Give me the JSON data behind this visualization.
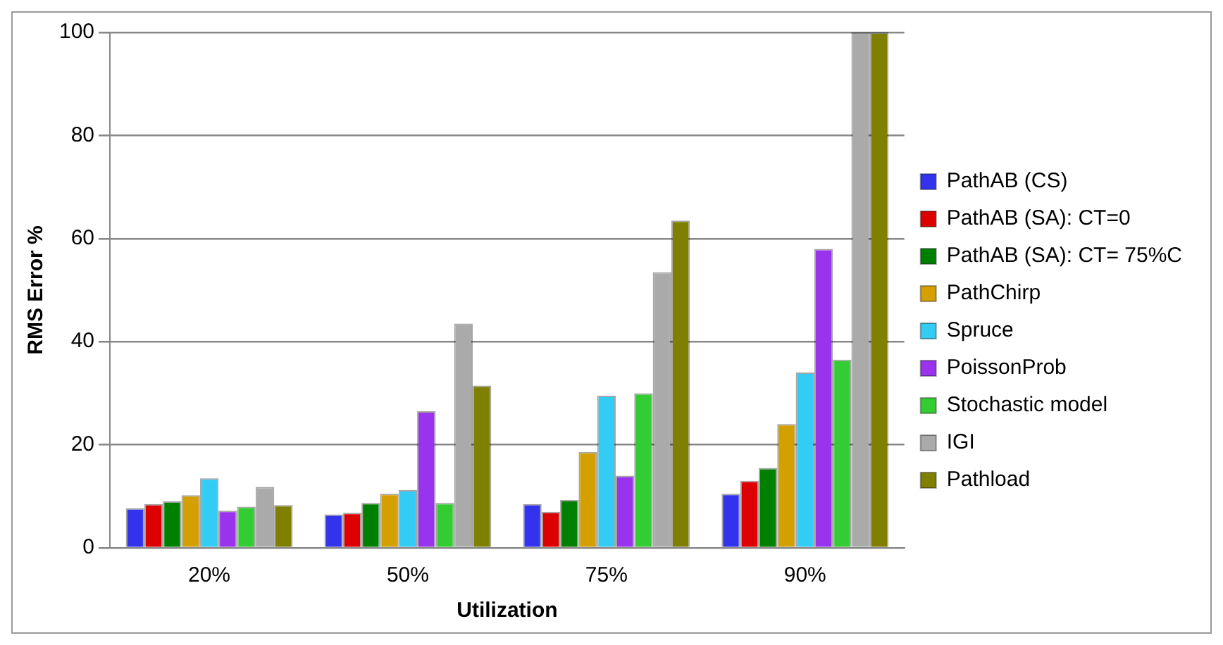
{
  "chart_data": {
    "type": "bar",
    "xlabel": "Utilization",
    "ylabel": "RMS Error %",
    "categories": [
      "20%",
      "50%",
      "75%",
      "90%"
    ],
    "series": [
      {
        "name": "PathAB (CS)",
        "color": "#3333ee",
        "values": [
          7.7,
          6.5,
          8.5,
          10.5
        ]
      },
      {
        "name": "PathAB (SA): CT=0",
        "color": "#dd0000",
        "values": [
          8.5,
          6.8,
          7,
          13
        ]
      },
      {
        "name": "PathAB (SA): CT= 75%C",
        "color": "#008000",
        "values": [
          9,
          8.7,
          9.3,
          15.5
        ]
      },
      {
        "name": "PathChirp",
        "color": "#d4a000",
        "values": [
          10.2,
          10.5,
          18.6,
          24
        ]
      },
      {
        "name": "Spruce",
        "color": "#33ccf5",
        "values": [
          13.5,
          11.2,
          29.5,
          34
        ]
      },
      {
        "name": "PoissonProb",
        "color": "#9933ee",
        "values": [
          7.2,
          26.5,
          14,
          58
        ]
      },
      {
        "name": "Stochastic model",
        "color": "#33cc33",
        "values": [
          8,
          8.7,
          30,
          36.5
        ]
      },
      {
        "name": "IGI",
        "color": "#aaaaaa",
        "values": [
          11.8,
          43.5,
          53.5,
          100
        ]
      },
      {
        "name": "Pathload",
        "color": "#808000",
        "values": [
          8.3,
          31.5,
          63.5,
          100
        ]
      }
    ],
    "ylim": [
      0,
      100
    ],
    "yticks": [
      0,
      20,
      40,
      60,
      80,
      100
    ],
    "grid": "y",
    "legend": "right"
  }
}
